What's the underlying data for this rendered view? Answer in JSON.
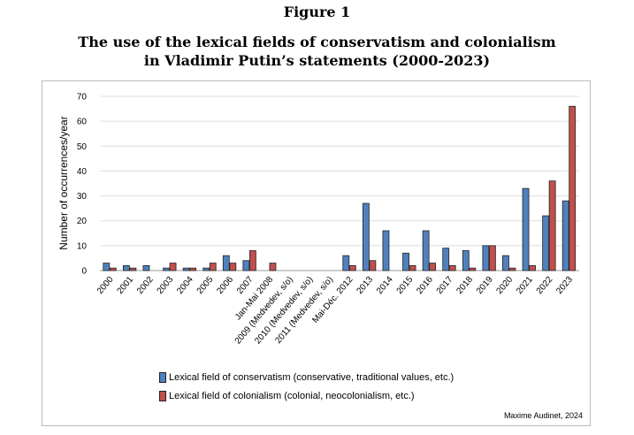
{
  "figure_label": "Figure 1",
  "title_line1": "The use of the lexical fields of conservatism and colonialism",
  "title_line2": "in Vladimir Putin’s statements (2000-2023)",
  "credit": "Maxime Audinet, 2024",
  "chart_data": {
    "type": "bar",
    "title": "The use of the lexical fields of conservatism and colonialism in Vladimir Putin’s statements (2000-2023)",
    "xlabel": "",
    "ylabel": "Number of occurrences/year",
    "ylim": [
      0,
      70
    ],
    "yticks": [
      0,
      10,
      20,
      30,
      40,
      50,
      60,
      70
    ],
    "grid": true,
    "legend_placement": "bottom",
    "categories": [
      "2000",
      "2001",
      "2002",
      "2003",
      "2004",
      "2005",
      "2006",
      "2007",
      "Jan-Mai 2008",
      "2009 (Medvedev, s/o)",
      "2010 (Medvedev, s/o)",
      "2011 (Medvedev, s/o)",
      "Mai-Déc. 2012",
      "2013",
      "2014",
      "2015",
      "2016",
      "2017",
      "2018",
      "2019",
      "2020",
      "2021",
      "2022",
      "2023"
    ],
    "series": [
      {
        "name": "Lexical field of conservatism (conservative, traditional values, etc.)",
        "color": "#4f81bd",
        "values": [
          3,
          2,
          2,
          1,
          1,
          1,
          6,
          4,
          0,
          0,
          0,
          0,
          6,
          27,
          16,
          7,
          16,
          9,
          8,
          10,
          6,
          33,
          22,
          28
        ]
      },
      {
        "name": "Lexical field of colonialism (colonial, neocolonialism, etc.)",
        "color": "#c0504d",
        "values": [
          1,
          1,
          0,
          3,
          1,
          3,
          3,
          8,
          3,
          0,
          0,
          0,
          2,
          4,
          0,
          2,
          3,
          2,
          1,
          10,
          1,
          2,
          36,
          66
        ]
      }
    ]
  }
}
